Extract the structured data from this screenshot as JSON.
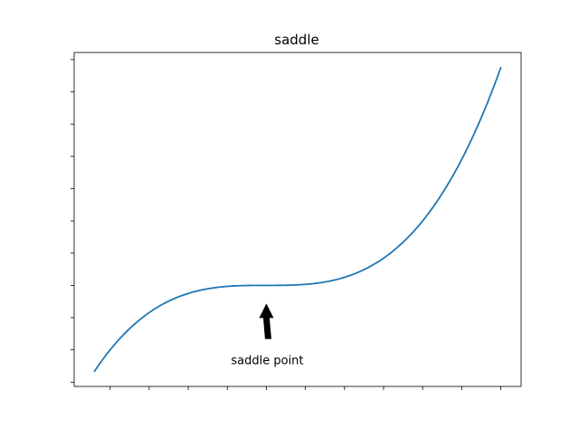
{
  "chart_data": {
    "type": "line",
    "title": "saddle",
    "xlabel": "",
    "ylabel": "",
    "x_tick_labels_visible": false,
    "y_tick_labels_visible": false,
    "grid": false,
    "legend": "none",
    "line_color": "#1f77b4",
    "series": [
      {
        "function": "x^3",
        "x": [
          -1.1,
          -1.0,
          -0.9,
          -0.8,
          -0.7,
          -0.6,
          -0.5,
          -0.4,
          -0.3,
          -0.2,
          -0.1,
          0.0,
          0.1,
          0.2,
          0.3,
          0.4,
          0.5,
          0.6,
          0.7,
          0.8,
          0.9,
          1.0,
          1.1,
          1.2,
          1.3,
          1.4,
          1.5
        ],
        "y": [
          -1.331,
          -1.0,
          -0.729,
          -0.512,
          -0.343,
          -0.216,
          -0.125,
          -0.064,
          -0.027,
          -0.008,
          -0.001,
          0.0,
          0.001,
          0.008,
          0.027,
          0.064,
          0.125,
          0.216,
          0.343,
          0.512,
          0.729,
          1.0,
          1.331,
          1.728,
          2.197,
          2.744,
          3.375
        ]
      }
    ],
    "annotation": {
      "text": "saddle point",
      "xy": [
        0,
        0
      ],
      "xytext": [
        0,
        -1
      ]
    }
  }
}
